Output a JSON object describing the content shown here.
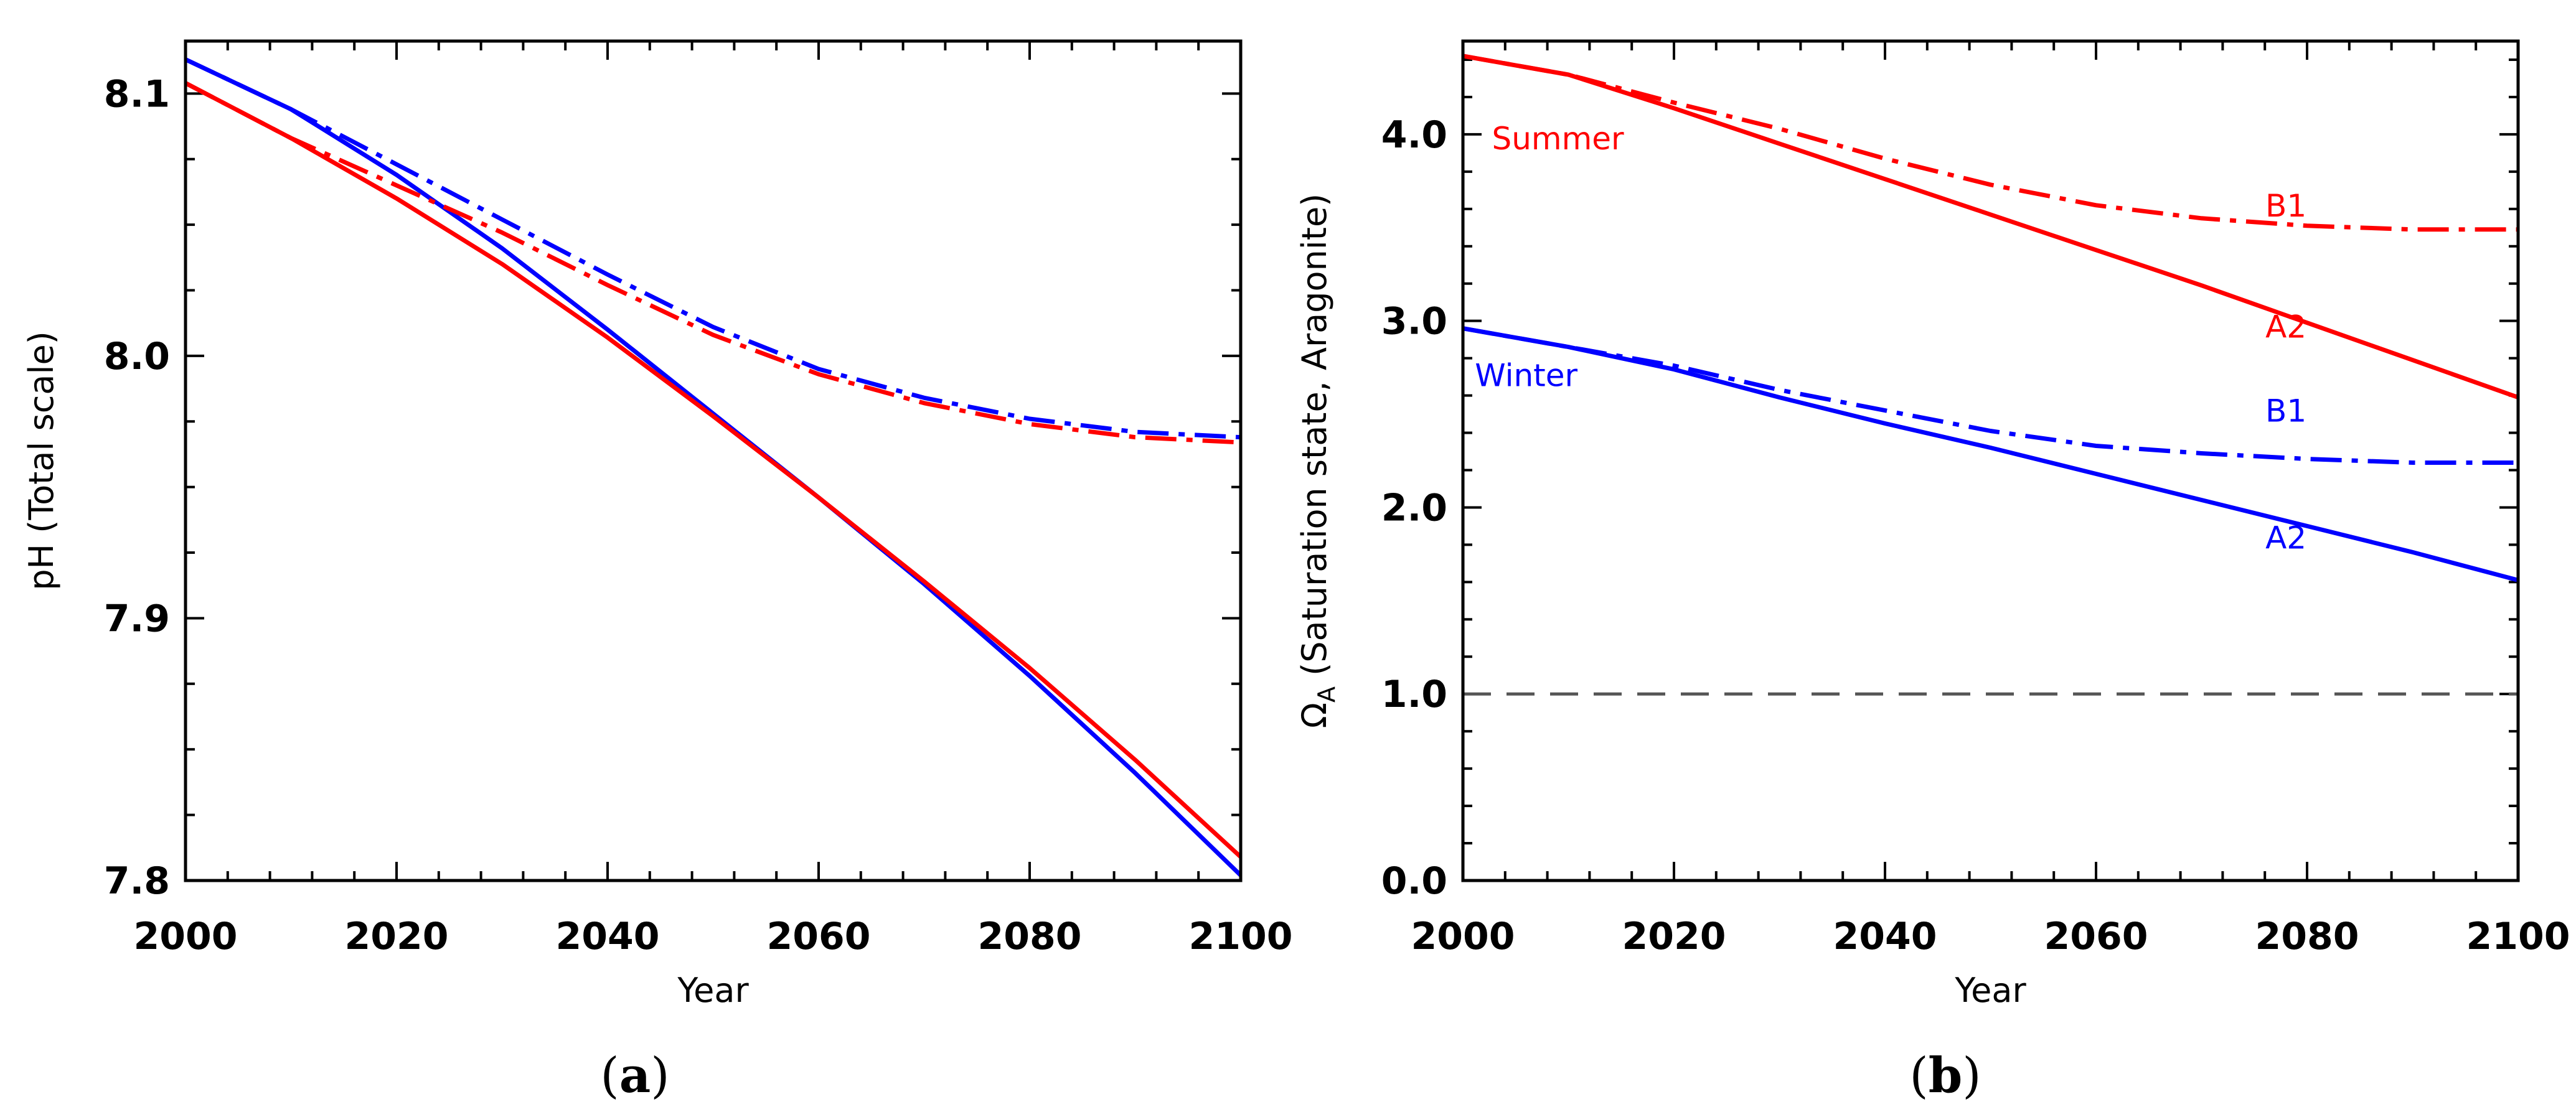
{
  "chart_data": [
    {
      "type": "line",
      "panel_label": "a",
      "title": "",
      "xlabel": "Year",
      "ylabel": "pH (Total scale)",
      "xlim": [
        2000,
        2100
      ],
      "ylim": [
        7.8,
        8.12
      ],
      "xticks": [
        2000,
        2020,
        2040,
        2060,
        2080,
        2100
      ],
      "xtick_labels": [
        "2000",
        "2020",
        "2040",
        "2060",
        "2080",
        "2100"
      ],
      "yticks": [
        7.8,
        7.9,
        8.0,
        8.1
      ],
      "ytick_labels": [
        "7.8",
        "7.9",
        "8.0",
        "8.1"
      ],
      "x": [
        2000,
        2010,
        2020,
        2030,
        2040,
        2050,
        2060,
        2070,
        2080,
        2090,
        2100
      ],
      "series": [
        {
          "name": "Winter A2",
          "color": "#0000ff",
          "dash": "solid",
          "values": [
            8.113,
            8.094,
            8.069,
            8.041,
            8.01,
            7.978,
            7.946,
            7.913,
            7.878,
            7.841,
            7.802
          ]
        },
        {
          "name": "Summer A2",
          "color": "#ff0000",
          "dash": "solid",
          "values": [
            8.104,
            8.083,
            8.06,
            8.035,
            8.007,
            7.977,
            7.946,
            7.914,
            7.881,
            7.846,
            7.809
          ]
        },
        {
          "name": "Winter B1",
          "color": "#0000ff",
          "dash": "dashdot",
          "values": [
            8.113,
            8.094,
            8.073,
            8.052,
            8.031,
            8.011,
            7.995,
            7.984,
            7.976,
            7.971,
            7.969
          ]
        },
        {
          "name": "Summer B1",
          "color": "#ff0000",
          "dash": "dashdot",
          "values": [
            8.104,
            8.083,
            8.065,
            8.047,
            8.027,
            8.008,
            7.993,
            7.982,
            7.974,
            7.969,
            7.967
          ]
        }
      ],
      "annotations": []
    },
    {
      "type": "line",
      "panel_label": "b",
      "title": "",
      "xlabel": "Year",
      "ylabel": "Ω",
      "ylabel_subscript": "A",
      "ylabel_rest": " (Saturation state, Aragonite)",
      "xlim": [
        2000,
        2100
      ],
      "ylim": [
        0,
        4.5
      ],
      "xticks": [
        2000,
        2020,
        2040,
        2060,
        2080,
        2100
      ],
      "xtick_labels": [
        "2000",
        "2020",
        "2040",
        "2060",
        "2080",
        "2100"
      ],
      "yticks": [
        0,
        1,
        2,
        3,
        4
      ],
      "ytick_labels": [
        "0.0",
        "1.0",
        "2.0",
        "3.0",
        "4.0"
      ],
      "x": [
        2000,
        2010,
        2020,
        2030,
        2040,
        2050,
        2060,
        2070,
        2080,
        2090,
        2100
      ],
      "series": [
        {
          "name": "Summer A2",
          "color": "#ff0000",
          "dash": "solid",
          "values": [
            4.42,
            4.32,
            4.14,
            3.95,
            3.76,
            3.57,
            3.38,
            3.19,
            2.99,
            2.79,
            2.59
          ]
        },
        {
          "name": "Summer B1",
          "color": "#ff0000",
          "dash": "dashdot",
          "values": [
            4.42,
            4.32,
            4.17,
            4.03,
            3.87,
            3.73,
            3.62,
            3.55,
            3.51,
            3.49,
            3.49
          ]
        },
        {
          "name": "Winter A2",
          "color": "#0000ff",
          "dash": "solid",
          "values": [
            2.96,
            2.86,
            2.74,
            2.59,
            2.45,
            2.32,
            2.18,
            2.04,
            1.9,
            1.76,
            1.61
          ]
        },
        {
          "name": "Winter B1",
          "color": "#0000ff",
          "dash": "dashdot",
          "values": [
            2.96,
            2.86,
            2.76,
            2.63,
            2.52,
            2.41,
            2.33,
            2.29,
            2.26,
            2.24,
            2.24
          ]
        },
        {
          "name": "Saturation threshold",
          "color": "#555555",
          "dash": "dashed",
          "values": [
            1.0,
            1.0,
            1.0,
            1.0,
            1.0,
            1.0,
            1.0,
            1.0,
            1.0,
            1.0,
            1.0
          ]
        }
      ],
      "annotations": [
        {
          "text": "Summer",
          "x": 2009,
          "y": 3.92,
          "color": "#ff0000"
        },
        {
          "text": "B1",
          "x": 2078,
          "y": 3.56,
          "color": "#ff0000"
        },
        {
          "text": "A2",
          "x": 2078,
          "y": 2.91,
          "color": "#ff0000"
        },
        {
          "text": "Winter",
          "x": 2006,
          "y": 2.65,
          "color": "#0000ff"
        },
        {
          "text": "B1",
          "x": 2078,
          "y": 2.46,
          "color": "#0000ff"
        },
        {
          "text": "A2",
          "x": 2078,
          "y": 1.78,
          "color": "#0000ff"
        }
      ]
    }
  ]
}
